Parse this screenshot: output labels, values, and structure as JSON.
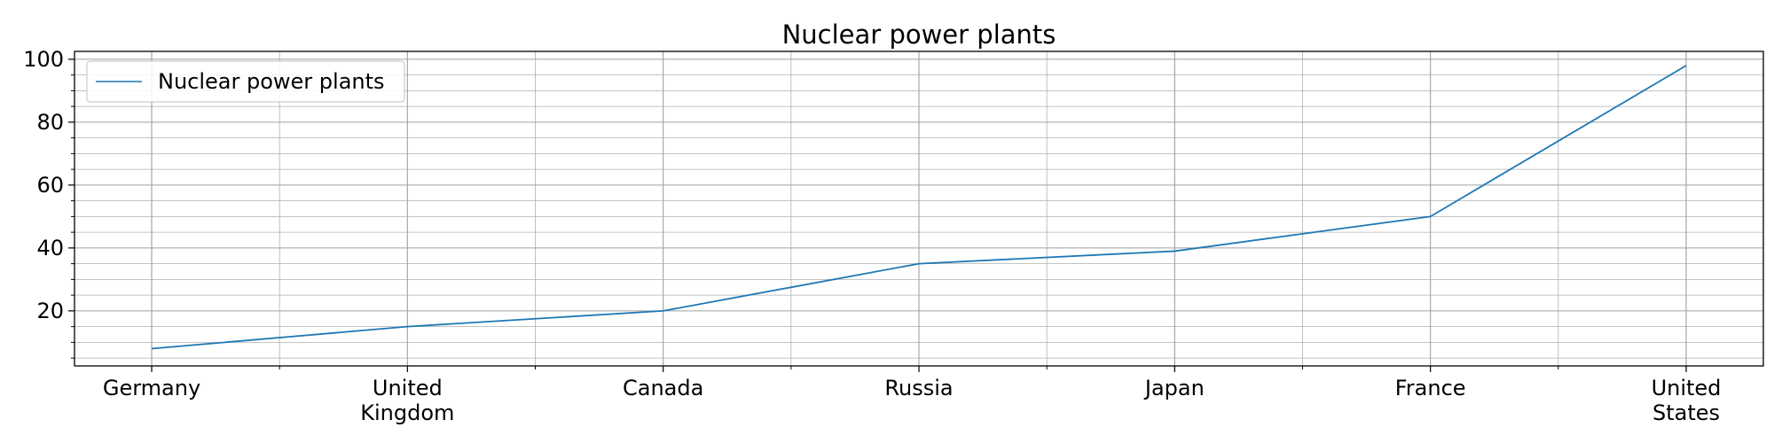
{
  "chart_data": {
    "type": "line",
    "title": "Nuclear power plants",
    "xlabel": "",
    "ylabel": "",
    "categories": [
      "Germany",
      "United\nKingdom",
      "Canada",
      "Russia",
      "Japan",
      "France",
      "United\nStates"
    ],
    "series": [
      {
        "name": "Nuclear power plants",
        "values": [
          8,
          15,
          20,
          35,
          39,
          50,
          98
        ],
        "color": "#1f77b4"
      }
    ],
    "ylim": [
      2.5,
      102.5
    ],
    "yticks": [
      20,
      40,
      60,
      80,
      100
    ],
    "grid": true,
    "minor_grid": true,
    "legend": "top-left"
  }
}
